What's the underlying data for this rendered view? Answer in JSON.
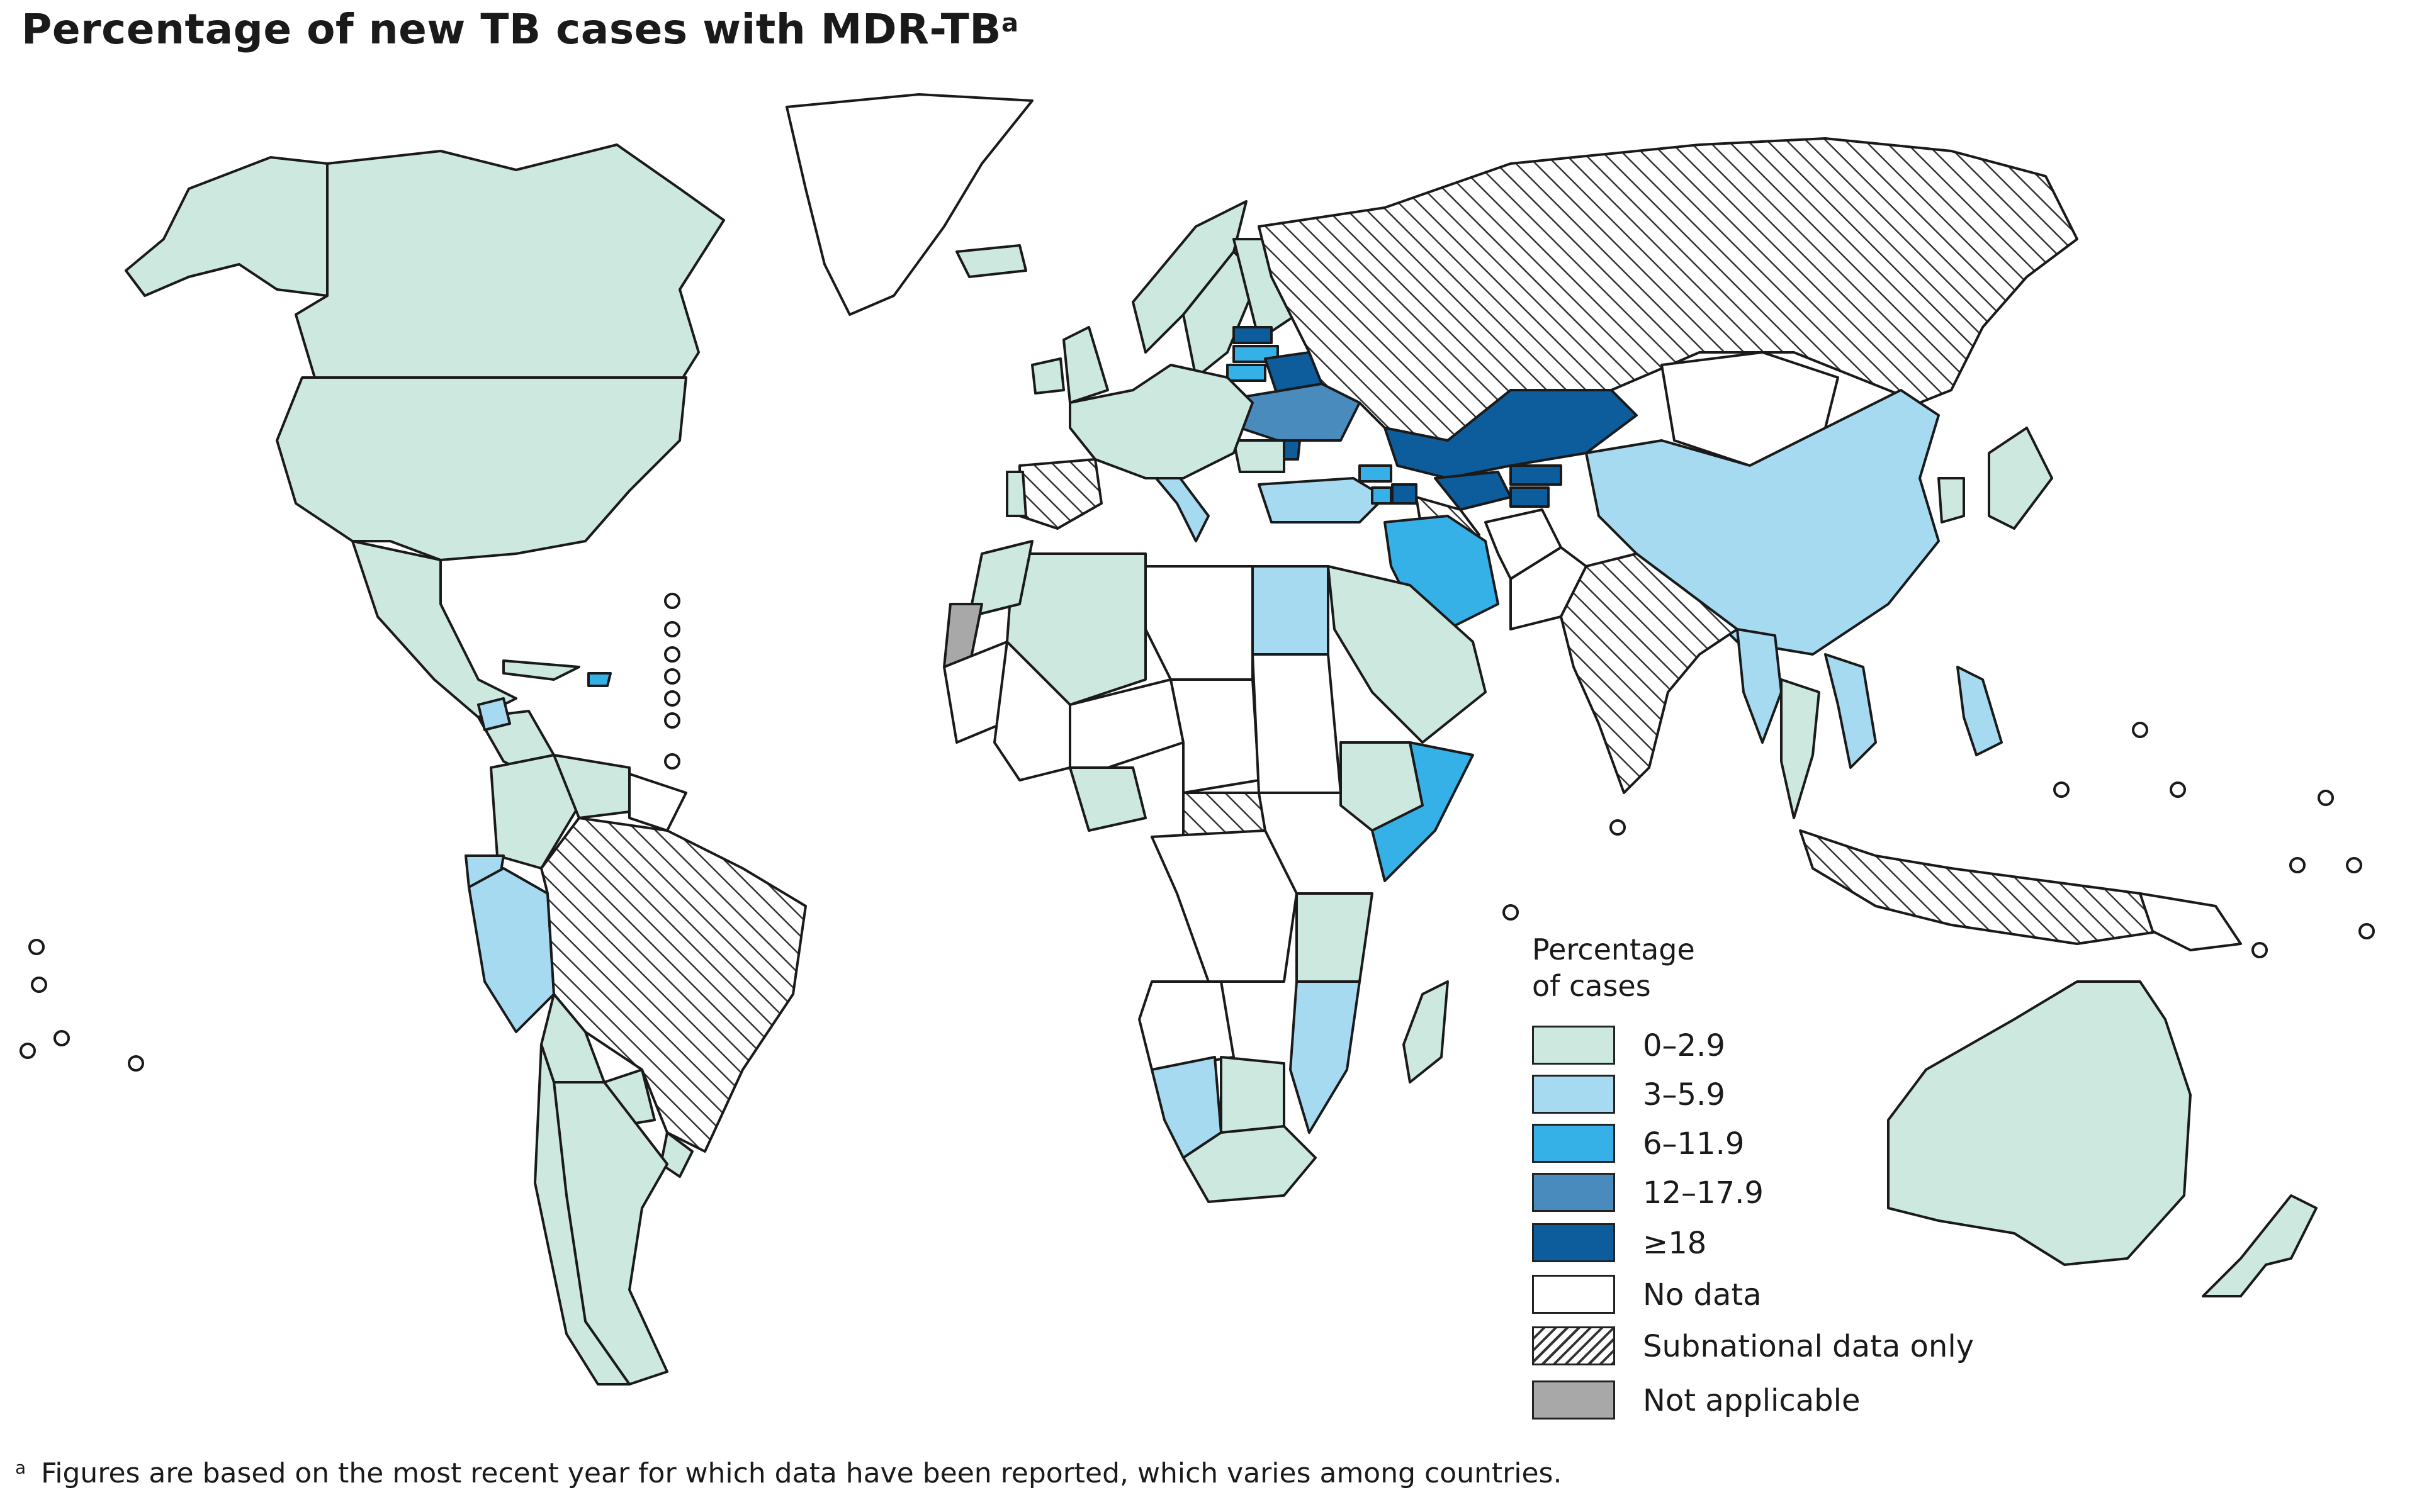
{
  "title": {
    "text": "Percentage of new TB cases with MDR-TB",
    "superscript": "a"
  },
  "legend": {
    "title_line1": "Percentage",
    "title_line2": "of cases",
    "items": [
      {
        "label": "0–2.9",
        "color": "#cde9df",
        "pattern": "solid"
      },
      {
        "label": "3–5.9",
        "color": "#a6daf1",
        "pattern": "solid"
      },
      {
        "label": "6–11.9",
        "color": "#36b1e7",
        "pattern": "solid"
      },
      {
        "label": "12–17.9",
        "color": "#4a8bbd",
        "pattern": "solid"
      },
      {
        "label": "≥18",
        "color": "#0d5c9c",
        "pattern": "solid"
      },
      {
        "label": "No data",
        "color": "#ffffff",
        "pattern": "solid"
      },
      {
        "label": "Subnational data only",
        "color": "#ffffff",
        "pattern": "hatch"
      },
      {
        "label": "Not applicable",
        "color": "#a8a8a8",
        "pattern": "solid"
      }
    ]
  },
  "footnote": {
    "marker": "a",
    "text": "Figures are based on the most recent year for which data have been reported, which varies among countries."
  },
  "map_regions": [
    {
      "name": "Canada",
      "category": "0–2.9"
    },
    {
      "name": "United States",
      "category": "0–2.9"
    },
    {
      "name": "Alaska",
      "category": "0–2.9"
    },
    {
      "name": "Greenland",
      "category": "No data"
    },
    {
      "name": "Mexico",
      "category": "0–2.9"
    },
    {
      "name": "Central America",
      "category": "0–2.9"
    },
    {
      "name": "Guatemala",
      "category": "3–5.9"
    },
    {
      "name": "Cuba",
      "category": "0–2.9"
    },
    {
      "name": "Dominican Republic",
      "category": "6–11.9"
    },
    {
      "name": "Colombia",
      "category": "0–2.9"
    },
    {
      "name": "Venezuela",
      "category": "0–2.9"
    },
    {
      "name": "Guianas",
      "category": "No data"
    },
    {
      "name": "Ecuador",
      "category": "3–5.9"
    },
    {
      "name": "Peru",
      "category": "3–5.9"
    },
    {
      "name": "Brazil",
      "category": "Subnational data only"
    },
    {
      "name": "Bolivia",
      "category": "0–2.9"
    },
    {
      "name": "Paraguay",
      "category": "0–2.9"
    },
    {
      "name": "Uruguay",
      "category": "0–2.9"
    },
    {
      "name": "Argentina",
      "category": "0–2.9"
    },
    {
      "name": "Chile",
      "category": "0–2.9"
    },
    {
      "name": "Iceland",
      "category": "0–2.9"
    },
    {
      "name": "United Kingdom",
      "category": "0–2.9"
    },
    {
      "name": "Ireland",
      "category": "0–2.9"
    },
    {
      "name": "Norway",
      "category": "0–2.9"
    },
    {
      "name": "Sweden",
      "category": "0–2.9"
    },
    {
      "name": "Finland",
      "category": "0–2.9"
    },
    {
      "name": "Estonia",
      "category": "≥18"
    },
    {
      "name": "Latvia",
      "category": "6–11.9"
    },
    {
      "name": "Lithuania",
      "category": "6–11.9"
    },
    {
      "name": "Belarus",
      "category": "≥18"
    },
    {
      "name": "Ukraine",
      "category": "12–17.9"
    },
    {
      "name": "Moldova",
      "category": "≥18"
    },
    {
      "name": "Romania",
      "category": "0–2.9"
    },
    {
      "name": "Italy",
      "category": "3–5.9"
    },
    {
      "name": "Western Europe",
      "category": "0–2.9"
    },
    {
      "name": "Spain",
      "category": "Subnational data only"
    },
    {
      "name": "Portugal",
      "category": "0–2.9"
    },
    {
      "name": "Turkey",
      "category": "3–5.9"
    },
    {
      "name": "Georgia",
      "category": "6–11.9"
    },
    {
      "name": "Armenia",
      "category": "6–11.9"
    },
    {
      "name": "Azerbaijan",
      "category": "≥18"
    },
    {
      "name": "Russian Federation",
      "category": "Subnational data only"
    },
    {
      "name": "Kazakhstan",
      "category": "≥18"
    },
    {
      "name": "Uzbekistan",
      "category": "≥18"
    },
    {
      "name": "Turkmenistan",
      "category": "Subnational data only"
    },
    {
      "name": "Kyrgyzstan",
      "category": "≥18"
    },
    {
      "name": "Tajikistan",
      "category": "≥18"
    },
    {
      "name": "Mongolia",
      "category": "No data"
    },
    {
      "name": "China",
      "category": "3–5.9"
    },
    {
      "name": "Iran",
      "category": "6–11.9"
    },
    {
      "name": "Afghanistan",
      "category": "No data"
    },
    {
      "name": "Pakistan",
      "category": "No data"
    },
    {
      "name": "India",
      "category": "Subnational data only"
    },
    {
      "name": "Myanmar",
      "category": "3–5.9"
    },
    {
      "name": "Thailand",
      "category": "0–2.9"
    },
    {
      "name": "Viet Nam",
      "category": "3–5.9"
    },
    {
      "name": "Philippines",
      "category": "3–5.9"
    },
    {
      "name": "Indonesia",
      "category": "Subnational data only"
    },
    {
      "name": "Japan",
      "category": "0–2.9"
    },
    {
      "name": "Korea",
      "category": "0–2.9"
    },
    {
      "name": "Saudi Arabia",
      "category": "0–2.9"
    },
    {
      "name": "Egypt",
      "category": "3–5.9"
    },
    {
      "name": "Libya",
      "category": "No data"
    },
    {
      "name": "Algeria",
      "category": "0–2.9"
    },
    {
      "name": "Morocco",
      "category": "0–2.9"
    },
    {
      "name": "Western Sahara",
      "category": "Not applicable"
    },
    {
      "name": "Mauritania",
      "category": "No data"
    },
    {
      "name": "Mali",
      "category": "No data"
    },
    {
      "name": "Niger",
      "category": "No data"
    },
    {
      "name": "Chad",
      "category": "No data"
    },
    {
      "name": "Sudan",
      "category": "No data"
    },
    {
      "name": "Ethiopia",
      "category": "0–2.9"
    },
    {
      "name": "Somalia",
      "category": "6–11.9"
    },
    {
      "name": "Nigeria",
      "category": "0–2.9"
    },
    {
      "name": "Central African Republic",
      "category": "Subnational data only"
    },
    {
      "name": "Democratic Republic of the Congo",
      "category": "No data"
    },
    {
      "name": "Angola",
      "category": "No data"
    },
    {
      "name": "Namibia",
      "category": "3–5.9"
    },
    {
      "name": "Botswana",
      "category": "0–2.9"
    },
    {
      "name": "South Africa",
      "category": "0–2.9"
    },
    {
      "name": "Mozambique",
      "category": "3–5.9"
    },
    {
      "name": "Tanzania",
      "category": "0–2.9"
    },
    {
      "name": "Madagascar",
      "category": "0–2.9"
    },
    {
      "name": "Australia",
      "category": "0–2.9"
    },
    {
      "name": "New Zealand",
      "category": "0–2.9"
    },
    {
      "name": "Papua New Guinea",
      "category": "No data"
    }
  ]
}
